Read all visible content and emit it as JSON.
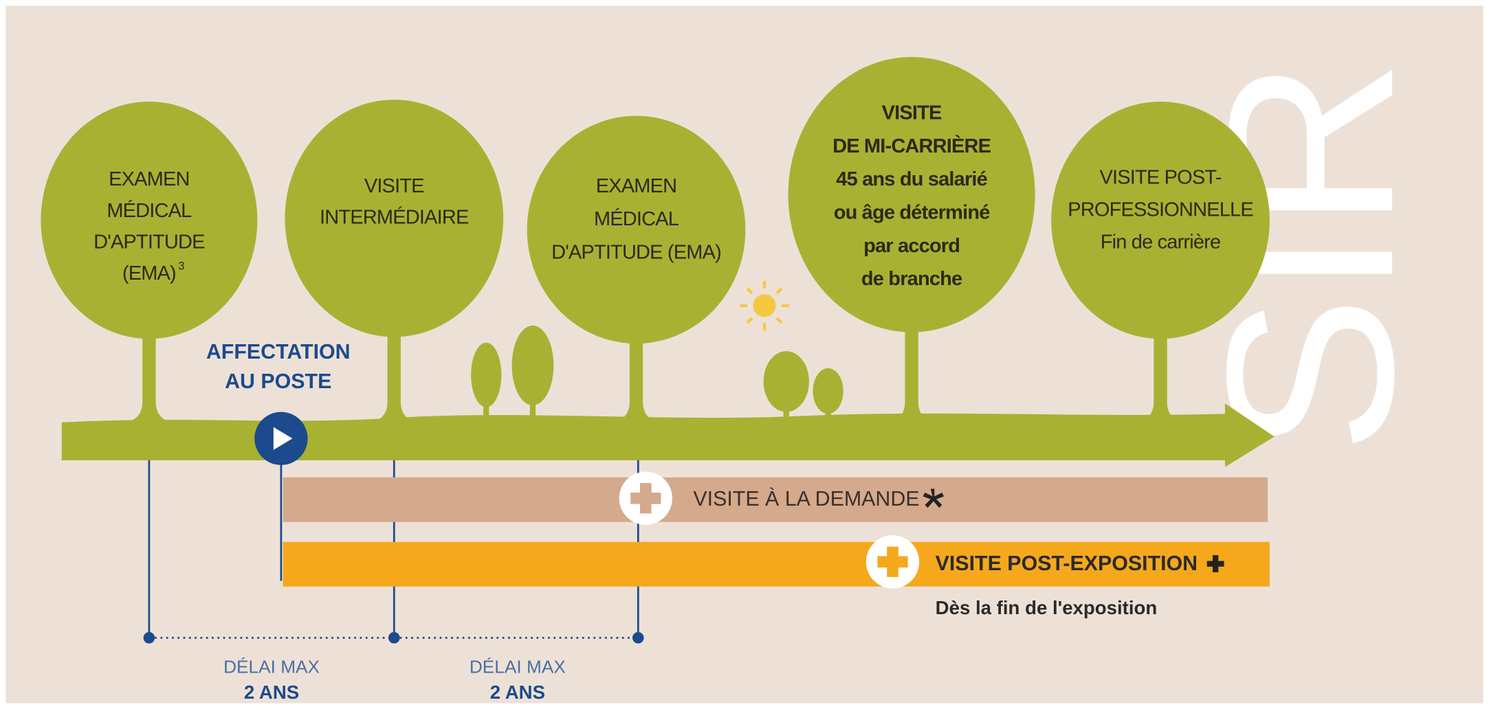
{
  "trees": [
    {
      "lines": [
        "EXAMEN",
        "MÉDICAL",
        "D'APTITUDE",
        "(EMA)"
      ],
      "note": "3"
    },
    {
      "lines": [
        "VISITE",
        "INTERMÉDIAIRE"
      ]
    },
    {
      "lines": [
        "EXAMEN",
        "MÉDICAL",
        "D'APTITUDE (EMA)"
      ]
    },
    {
      "lines": [
        "VISITE",
        "DE MI-CARRIÈRE",
        "45 ans du salarié",
        "ou âge déterminé",
        "par accord",
        "de branche"
      ]
    },
    {
      "lines": [
        "VISITE POST-",
        "PROFESSIONNELLE",
        "Fin de carrière"
      ]
    }
  ],
  "start": {
    "lines": [
      "AFFECTATION",
      "AU POSTE"
    ]
  },
  "bars": [
    {
      "label": "VISITE À LA DEMANDE"
    },
    {
      "label": "VISITE POST-EXPOSITION",
      "subtitle": "Dès la fin de l'exposition"
    }
  ],
  "delays": [
    {
      "label": "DÉLAI MAX",
      "value": "2 ANS"
    },
    {
      "label": "DÉLAI MAX",
      "value": "2 ANS"
    }
  ],
  "brand": "SIR"
}
